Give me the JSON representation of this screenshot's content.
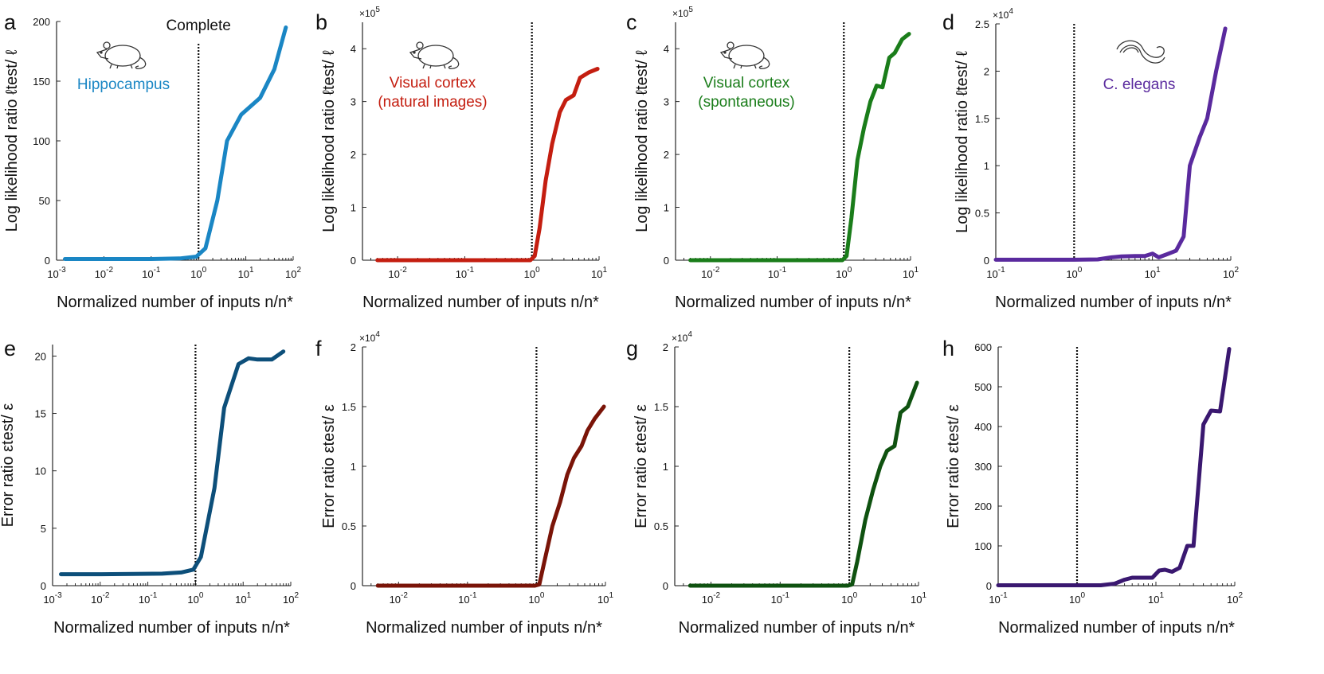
{
  "figure": {
    "shared_xlabel": "Normalized number of inputs n/n*",
    "complete_label": "Complete"
  },
  "chart_data": [
    {
      "id": "a",
      "type": "line",
      "letter": "a",
      "xscale": "log",
      "xlim": [
        0.001,
        100
      ],
      "xticks": [
        {
          "b": "10",
          "e": "-3"
        },
        {
          "b": "10",
          "e": "-2"
        },
        {
          "b": "10",
          "e": "-1"
        },
        {
          "b": "10",
          "e": "0"
        },
        {
          "b": "10",
          "e": "1"
        },
        {
          "b": "10",
          "e": "2"
        }
      ],
      "xtick_values": [
        0.001,
        0.01,
        0.1,
        1,
        10,
        100
      ],
      "ylim": [
        0,
        200
      ],
      "yticks": [
        0,
        50,
        100,
        150,
        200
      ],
      "ytick_labels": [
        "0",
        "50",
        "100",
        "150",
        "200"
      ],
      "ylabel": "Log likelihood ratio ℓtest/ ℓ",
      "multiplier": "",
      "vline": 1,
      "annotation": "Hippocampus",
      "icon": "mouse",
      "color": "#1a86c4",
      "series": [
        {
          "x": [
            0.0015,
            0.005,
            0.02,
            0.1,
            0.4,
            0.9,
            1.4,
            2.5,
            4,
            8,
            20,
            40,
            70
          ],
          "y": [
            1,
            1,
            1,
            1,
            1.5,
            3,
            10,
            50,
            100,
            122,
            136,
            160,
            195
          ]
        }
      ]
    },
    {
      "id": "b",
      "type": "line",
      "letter": "b",
      "xscale": "log",
      "xlim": [
        0.003,
        10
      ],
      "xticks": [
        {
          "b": "10",
          "e": "-2"
        },
        {
          "b": "10",
          "e": "-1"
        },
        {
          "b": "10",
          "e": "0"
        },
        {
          "b": "10",
          "e": "1"
        }
      ],
      "xtick_values": [
        0.01,
        0.1,
        1,
        10
      ],
      "ylim": [
        0,
        450000
      ],
      "yticks": [
        0,
        100000,
        200000,
        300000,
        400000
      ],
      "ytick_labels": [
        "0",
        "1",
        "2",
        "3",
        "4"
      ],
      "ylabel": "Log likelihood ratio ℓtest/ ℓ",
      "multiplier": {
        "b": "×10",
        "e": "5"
      },
      "vline": 1,
      "annotation": [
        "Visual cortex",
        "(natural images)"
      ],
      "icon": "mouse",
      "color": "#c41e10",
      "series": [
        {
          "x": [
            0.005,
            0.05,
            0.5,
            0.95,
            1.1,
            1.3,
            1.6,
            2.0,
            2.6,
            3.2,
            4.2,
            5.2,
            7,
            9.5
          ],
          "y": [
            0,
            0,
            0,
            0,
            8000,
            60000,
            150000,
            220000,
            280000,
            303000,
            312000,
            345000,
            355000,
            362000
          ]
        }
      ]
    },
    {
      "id": "c",
      "type": "line",
      "letter": "c",
      "xscale": "log",
      "xlim": [
        0.003,
        10
      ],
      "xticks": [
        {
          "b": "10",
          "e": "-2"
        },
        {
          "b": "10",
          "e": "-1"
        },
        {
          "b": "10",
          "e": "0"
        },
        {
          "b": "10",
          "e": "1"
        }
      ],
      "xtick_values": [
        0.01,
        0.1,
        1,
        10
      ],
      "ylim": [
        0,
        450000
      ],
      "yticks": [
        0,
        100000,
        200000,
        300000,
        400000
      ],
      "ytick_labels": [
        "0",
        "1",
        "2",
        "3",
        "4"
      ],
      "ylabel": "Log likelihood ratio ℓtest/ ℓ",
      "multiplier": {
        "b": "×10",
        "e": "5"
      },
      "vline": 1,
      "annotation": [
        "Visual cortex",
        "(spontaneous)"
      ],
      "icon": "mouse",
      "color": "#1a7d1a",
      "series": [
        {
          "x": [
            0.005,
            0.05,
            0.5,
            0.95,
            1.1,
            1.3,
            1.6,
            2.0,
            2.5,
            3.1,
            3.8,
            4.8,
            5.8,
            7.5,
            9.5
          ],
          "y": [
            0,
            0,
            0,
            0,
            8000,
            80000,
            190000,
            250000,
            300000,
            330000,
            327000,
            383000,
            392000,
            418000,
            428000
          ]
        }
      ]
    },
    {
      "id": "d",
      "type": "line",
      "letter": "d",
      "xscale": "log",
      "xlim": [
        0.1,
        100
      ],
      "xticks": [
        {
          "b": "10",
          "e": "-1"
        },
        {
          "b": "10",
          "e": "0"
        },
        {
          "b": "10",
          "e": "1"
        },
        {
          "b": "10",
          "e": "2"
        }
      ],
      "xtick_values": [
        0.1,
        1,
        10,
        100
      ],
      "ylim": [
        0,
        25000
      ],
      "yticks": [
        0,
        5000,
        10000,
        15000,
        20000,
        25000
      ],
      "ytick_labels": [
        "0",
        "0.5",
        "1",
        "1.5",
        "2",
        "2.5"
      ],
      "ylabel": "Log likelihood ratio ℓtest/ ℓ",
      "multiplier": {
        "b": "×10",
        "e": "4"
      },
      "vline": 1,
      "annotation": "C. elegans",
      "icon": "worm",
      "color": "#5a2a9e",
      "series": [
        {
          "x": [
            0.1,
            0.5,
            1,
            2,
            3,
            4,
            6,
            8,
            10,
            12,
            15,
            20,
            25,
            30,
            40,
            50,
            65,
            85
          ],
          "y": [
            50,
            50,
            50,
            80,
            300,
            400,
            450,
            450,
            700,
            300,
            600,
            1000,
            2500,
            10000,
            13000,
            15000,
            20000,
            24500
          ]
        }
      ]
    },
    {
      "id": "e",
      "type": "line",
      "letter": "e",
      "xscale": "log",
      "xlim": [
        0.001,
        100
      ],
      "xticks": [
        {
          "b": "10",
          "e": "-3"
        },
        {
          "b": "10",
          "e": "-2"
        },
        {
          "b": "10",
          "e": "-1"
        },
        {
          "b": "10",
          "e": "0"
        },
        {
          "b": "10",
          "e": "1"
        },
        {
          "b": "10",
          "e": "2"
        }
      ],
      "xtick_values": [
        0.001,
        0.01,
        0.1,
        1,
        10,
        100
      ],
      "ylim": [
        0,
        21
      ],
      "yticks": [
        0,
        5,
        10,
        15,
        20
      ],
      "ytick_labels": [
        "0",
        "5",
        "10",
        "15",
        "20"
      ],
      "ylabel": "Error ratio εtest/ ε",
      "multiplier": "",
      "vline": 1,
      "color": "#0d4f7a",
      "series": [
        {
          "x": [
            0.0015,
            0.01,
            0.05,
            0.2,
            0.5,
            0.9,
            1.3,
            2.5,
            4,
            8,
            13,
            20,
            40,
            70
          ],
          "y": [
            1,
            1,
            1.02,
            1.05,
            1.15,
            1.4,
            2.5,
            8.5,
            15.5,
            19.3,
            19.8,
            19.7,
            19.7,
            20.4
          ]
        }
      ]
    },
    {
      "id": "f",
      "type": "line",
      "letter": "f",
      "xscale": "log",
      "xlim": [
        0.003,
        10
      ],
      "xticks": [
        {
          "b": "10",
          "e": "-2"
        },
        {
          "b": "10",
          "e": "-1"
        },
        {
          "b": "10",
          "e": "0"
        },
        {
          "b": "10",
          "e": "1"
        }
      ],
      "xtick_values": [
        0.01,
        0.1,
        1,
        10
      ],
      "ylim": [
        0,
        20000
      ],
      "yticks": [
        0,
        5000,
        10000,
        15000,
        20000
      ],
      "ytick_labels": [
        "0",
        "0.5",
        "1",
        "1.5",
        "2"
      ],
      "ylabel": "Error ratio εtest/ ε",
      "multiplier": {
        "b": "×10",
        "e": "4"
      },
      "vline": 1,
      "color": "#7a1408",
      "series": [
        {
          "x": [
            0.005,
            0.05,
            0.5,
            0.95,
            1.1,
            1.3,
            1.7,
            2.2,
            2.8,
            3.5,
            4.5,
            5.5,
            7,
            9.5
          ],
          "y": [
            0,
            0,
            0,
            0,
            100,
            2000,
            5000,
            7000,
            9300,
            10700,
            11700,
            13000,
            14000,
            15000
          ]
        }
      ]
    },
    {
      "id": "g",
      "type": "line",
      "letter": "g",
      "xscale": "log",
      "xlim": [
        0.003,
        10
      ],
      "xticks": [
        {
          "b": "10",
          "e": "-2"
        },
        {
          "b": "10",
          "e": "-1"
        },
        {
          "b": "10",
          "e": "0"
        },
        {
          "b": "10",
          "e": "1"
        }
      ],
      "xtick_values": [
        0.01,
        0.1,
        1,
        10
      ],
      "ylim": [
        0,
        20000
      ],
      "yticks": [
        0,
        5000,
        10000,
        15000,
        20000
      ],
      "ytick_labels": [
        "0",
        "0.5",
        "1",
        "1.5",
        "2"
      ],
      "ylabel": "Error ratio εtest/ ε",
      "multiplier": {
        "b": "×10",
        "e": "4"
      },
      "vline": 1,
      "color": "#0f5210",
      "series": [
        {
          "x": [
            0.005,
            0.05,
            0.5,
            0.95,
            1.1,
            1.3,
            1.7,
            2.2,
            2.8,
            3.5,
            4.5,
            5.5,
            7,
            9.5
          ],
          "y": [
            0,
            0,
            0,
            0,
            100,
            2000,
            5500,
            8000,
            10000,
            11300,
            11700,
            14500,
            15000,
            17000
          ]
        }
      ]
    },
    {
      "id": "h",
      "type": "line",
      "letter": "h",
      "xscale": "log",
      "xlim": [
        0.1,
        100
      ],
      "xticks": [
        {
          "b": "10",
          "e": "-1"
        },
        {
          "b": "10",
          "e": "0"
        },
        {
          "b": "10",
          "e": "1"
        },
        {
          "b": "10",
          "e": "2"
        }
      ],
      "xtick_values": [
        0.1,
        1,
        10,
        100
      ],
      "ylim": [
        0,
        600
      ],
      "yticks": [
        0,
        100,
        200,
        300,
        400,
        500,
        600
      ],
      "ytick_labels": [
        "0",
        "100",
        "200",
        "300",
        "400",
        "500",
        "600"
      ],
      "ylabel": "Error ratio εtest/ ε",
      "multiplier": "",
      "vline": 1,
      "color": "#3a1870",
      "series": [
        {
          "x": [
            0.1,
            0.5,
            1,
            2,
            3,
            4,
            5,
            7,
            9,
            11,
            13,
            16,
            20,
            25,
            30,
            40,
            50,
            65,
            85
          ],
          "y": [
            1,
            1,
            1,
            1,
            5,
            15,
            20,
            20,
            20,
            38,
            40,
            35,
            45,
            100,
            100,
            405,
            440,
            438,
            595
          ]
        }
      ]
    }
  ]
}
